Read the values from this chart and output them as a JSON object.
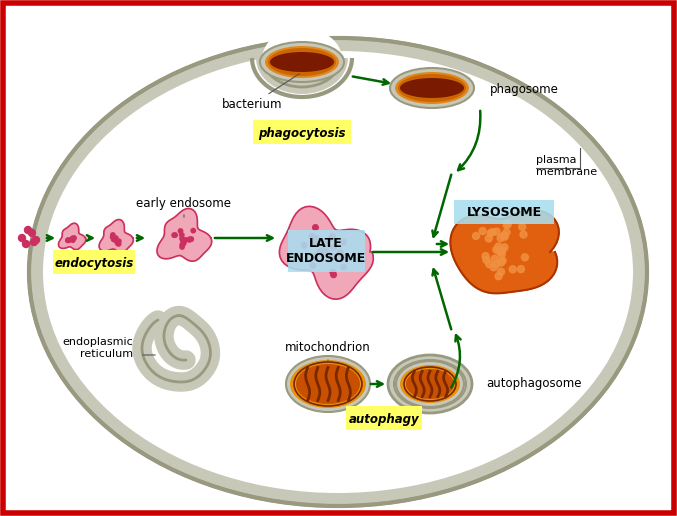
{
  "bg_color": "#ffffff",
  "border_color": "#cc0000",
  "arrow_color": "#006600",
  "label_yellow_bg": "#ffff66",
  "label_blue_bg": "#aaddee",
  "cell_gray": "#c8c8b8",
  "cell_stroke": "#999980",
  "bacterium_dark": "#7a1a00",
  "bacterium_orange": "#cc6600",
  "bacterium_light": "#e08820",
  "mito_orange": "#e89010",
  "mito_dark": "#7a2800",
  "lyso_orange": "#e06010",
  "lyso_spot": "#f09040",
  "endo_pink": "#f0a8b8",
  "endo_dot": "#cc3060",
  "late_endosome_label": "LATE\nENDOSOME",
  "lysosome_label": "LYSOSOME",
  "phagocytosis_label": "phagocytosis",
  "endocytosis_label": "endocytosis",
  "autophagy_label": "autophagy",
  "bacterium_label": "bacterium",
  "phagosome_label": "phagosome",
  "early_endosome_label": "early endosome",
  "plasma_membrane_label": "plasma\nmembrane",
  "mitochondrion_label": "mitochondrion",
  "autophagosome_label": "autophagosome",
  "er_label": "endoplasmic\nreticulum"
}
